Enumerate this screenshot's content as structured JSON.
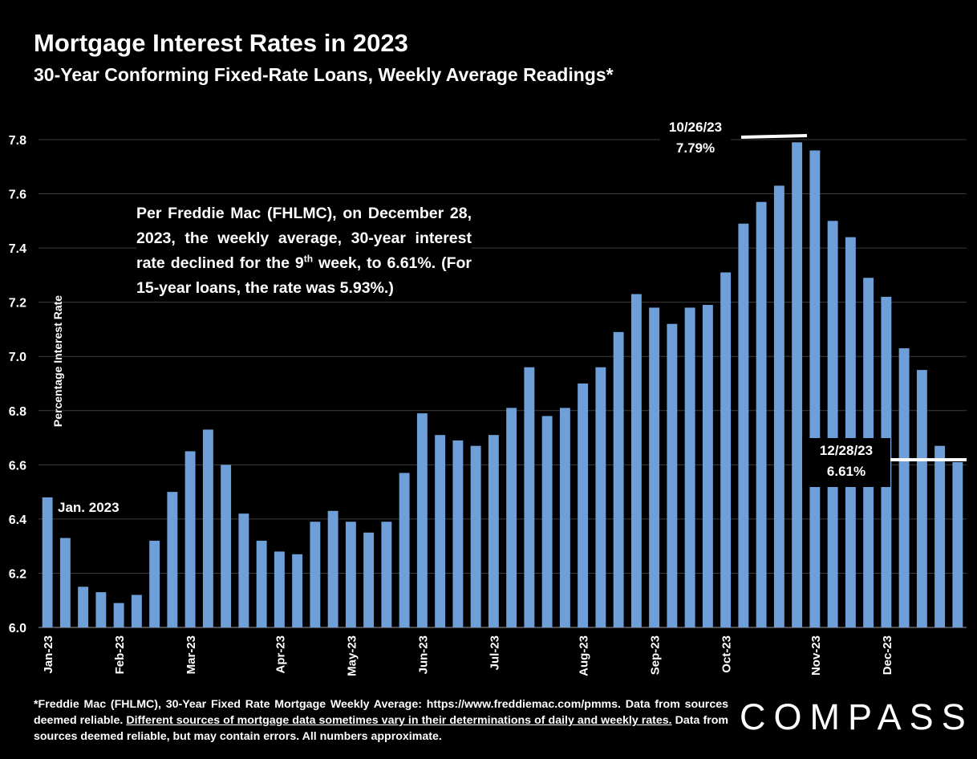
{
  "chart_data": {
    "type": "bar",
    "title": "Mortgage Interest Rates in 2023",
    "subtitle": "30-Year Conforming Fixed-Rate Loans, Weekly Average Readings*",
    "ylabel": "Percentage Interest Rate",
    "xlabel": "",
    "ylim": [
      6.0,
      7.8
    ],
    "yticks": [
      "6.0",
      "6.2",
      "6.4",
      "6.6",
      "6.8",
      "7.0",
      "7.2",
      "7.4",
      "7.6",
      "7.8"
    ],
    "grid": true,
    "bar_color": "#6f9fd8",
    "values": [
      6.48,
      6.33,
      6.15,
      6.13,
      6.09,
      6.12,
      6.32,
      6.5,
      6.65,
      6.73,
      6.6,
      6.42,
      6.32,
      6.28,
      6.27,
      6.39,
      6.43,
      6.39,
      6.35,
      6.39,
      6.57,
      6.79,
      6.71,
      6.69,
      6.67,
      6.71,
      6.81,
      6.96,
      6.78,
      6.81,
      6.9,
      6.96,
      7.09,
      7.23,
      7.18,
      7.12,
      7.18,
      7.19,
      7.31,
      7.49,
      7.57,
      7.63,
      7.79,
      7.76,
      7.5,
      7.44,
      7.29,
      7.22,
      7.03,
      6.95,
      6.67,
      6.61
    ],
    "month_labels": [
      {
        "label": "Jan-23",
        "week": 0
      },
      {
        "label": "Feb-23",
        "week": 4
      },
      {
        "label": "Mar-23",
        "week": 8
      },
      {
        "label": "Apr-23",
        "week": 13
      },
      {
        "label": "May-23",
        "week": 17
      },
      {
        "label": "Jun-23",
        "week": 21
      },
      {
        "label": "Jul-23",
        "week": 25
      },
      {
        "label": "Aug-23",
        "week": 30
      },
      {
        "label": "Sep-23",
        "week": 34
      },
      {
        "label": "Oct-23",
        "week": 38
      },
      {
        "label": "Nov-23",
        "week": 43
      },
      {
        "label": "Dec-23",
        "week": 47
      }
    ]
  },
  "annotations": {
    "note_line1": "Per Freddie Mac (FHLMC), on December 28, 2023, the weekly average, 30-year interest rate declined for the 9",
    "note_sup": "th",
    "note_line2": " week, to 6.61%. (For 15-year loans, the rate was 5.93%.)",
    "peak_date": "10/26/23",
    "peak_value": "7.79%",
    "end_date": "12/28/23",
    "end_value": "6.61%",
    "start_label": "Jan. 2023"
  },
  "footer": {
    "part1": "*Freddie Mac (FHLMC), 30-Year Fixed Rate Mortgage Weekly Average:  https://www.freddiemac.com/pmms. Data from sources deemed reliable. ",
    "underlined": "Different sources of mortgage data sometimes vary in their determinations of daily and weekly rates.",
    "part2": " Data from sources deemed reliable, but may contain errors. All numbers approximate."
  },
  "logo": "COMPASS"
}
